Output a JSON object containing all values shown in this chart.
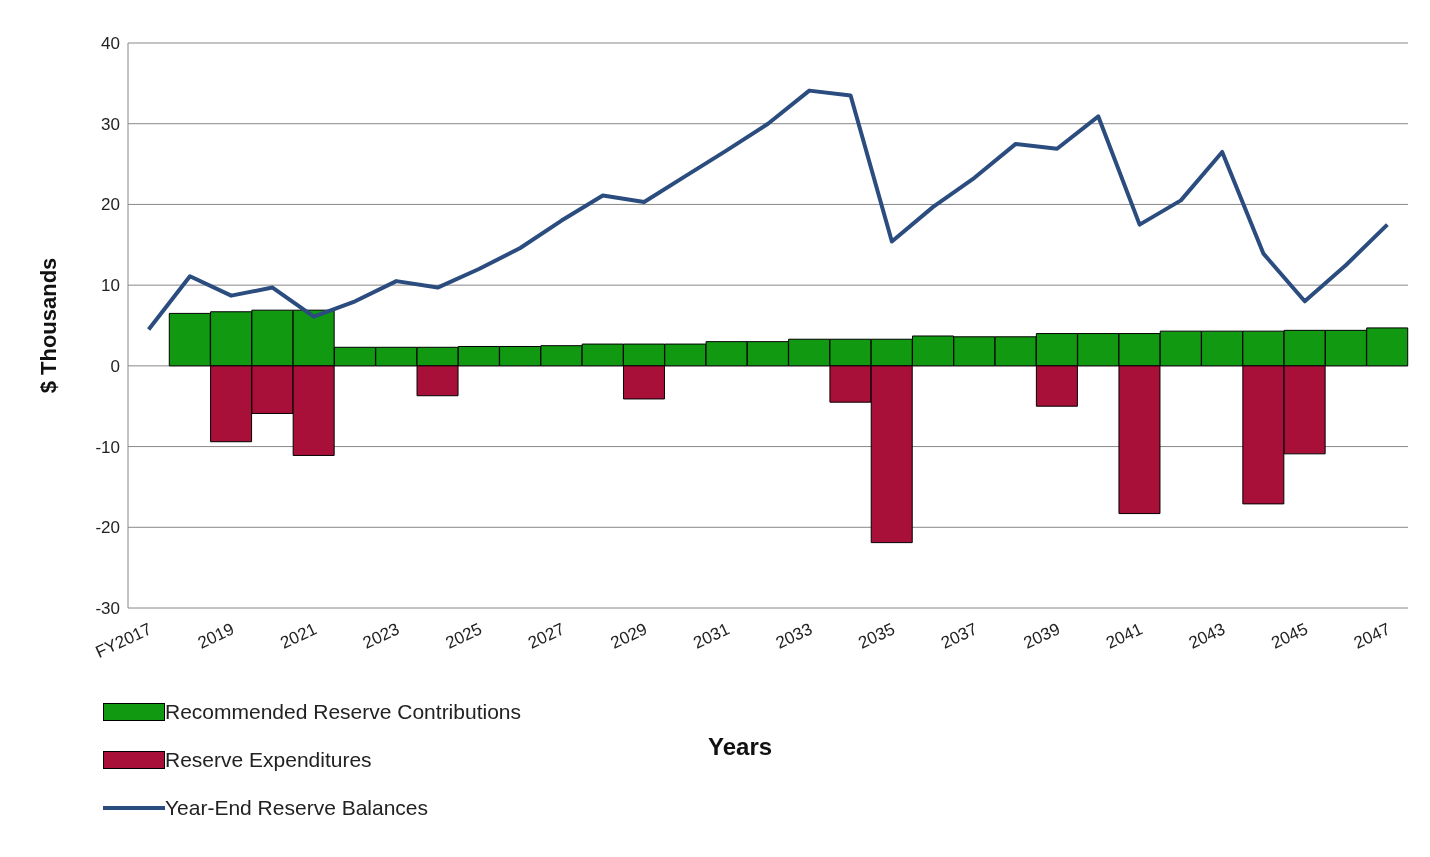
{
  "chart_data": {
    "type": "bar",
    "xlabel": "Years",
    "ylabel": "$ Thousands",
    "categories": [
      "FY2017",
      null,
      "2019",
      null,
      "2021",
      null,
      "2023",
      null,
      "2025",
      null,
      "2027",
      null,
      "2029",
      null,
      "2031",
      null,
      "2033",
      null,
      "2035",
      null,
      "2037",
      null,
      "2039",
      null,
      "2041",
      null,
      "2043",
      null,
      "2045",
      null,
      "2047"
    ],
    "series": [
      {
        "name": "Recommended Reserve Contributions",
        "color": "#119a11",
        "values": [
          null,
          6.5,
          6.7,
          6.9,
          6.9,
          2.3,
          2.3,
          2.3,
          2.4,
          2.4,
          2.5,
          2.7,
          2.7,
          2.7,
          3.0,
          3.0,
          3.3,
          3.3,
          3.3,
          3.7,
          3.6,
          3.6,
          4.0,
          4.0,
          4.0,
          4.3,
          4.3,
          4.3,
          4.4,
          4.4,
          4.7
        ]
      },
      {
        "name": "Reserve Expenditures",
        "color": "#a8103a",
        "values": [
          null,
          null,
          -9.4,
          -5.9,
          -11.1,
          null,
          null,
          -3.7,
          null,
          null,
          null,
          null,
          -4.1,
          null,
          null,
          null,
          null,
          -4.5,
          -21.9,
          null,
          null,
          null,
          -5.0,
          null,
          -18.3,
          null,
          null,
          -17.1,
          -10.9,
          null,
          null
        ]
      },
      {
        "name": "Year-End Reserve Balances",
        "type": "line",
        "color": "#2b4c7e",
        "values": [
          4.5,
          11.1,
          8.7,
          9.7,
          6.1,
          8.0,
          10.5,
          9.7,
          12.0,
          14.6,
          18.0,
          21.1,
          20.3,
          23.5,
          26.7,
          30.0,
          34.1,
          33.5,
          15.4,
          19.7,
          23.3,
          27.5,
          26.9,
          30.9,
          17.5,
          20.5,
          26.5,
          13.9,
          8.0,
          12.5,
          17.5
        ]
      }
    ],
    "stacked": true,
    "ylim": [
      -30,
      40
    ],
    "yticks": [
      -30,
      -20,
      -10,
      0,
      10,
      20,
      30,
      40
    ],
    "grid": "y",
    "legend": "bottom left",
    "marker": "none",
    "line_style": "solid"
  }
}
